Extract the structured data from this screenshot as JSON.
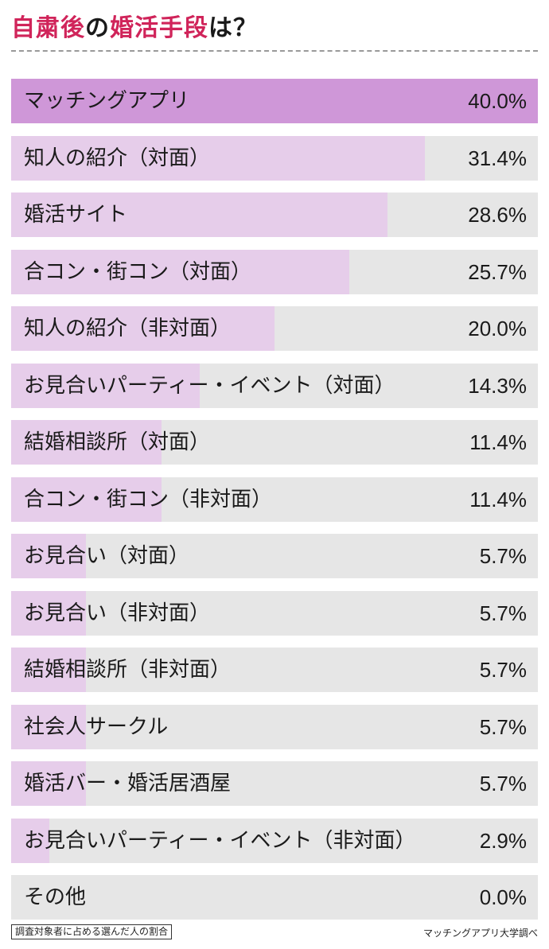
{
  "title": {
    "part1": "自粛後",
    "part2": "の",
    "part3": "婚活手段",
    "part4": "は？"
  },
  "colors": {
    "title_accent": "#d0245a",
    "bar_highlight": "#cf97d8",
    "bar_normal": "#e6cdea",
    "track": "#e6e6e6"
  },
  "chart_data": {
    "type": "bar",
    "orientation": "horizontal",
    "xlim": [
      0,
      40
    ],
    "unit": "%",
    "categories": [
      "マッチングアプリ",
      "知人の紹介（対面）",
      "婚活サイト",
      "合コン・街コン（対面）",
      "知人の紹介（非対面）",
      "お見合いパーティー・イベント（対面）",
      "結婚相談所（対面）",
      "合コン・街コン（非対面）",
      "お見合い（対面）",
      "お見合い（非対面）",
      "結婚相談所（非対面）",
      "社会人サークル",
      "婚活バー・婚活居酒屋",
      "お見合いパーティー・イベント（非対面）",
      "その他"
    ],
    "values": [
      40.0,
      31.4,
      28.6,
      25.7,
      20.0,
      14.3,
      11.4,
      11.4,
      5.7,
      5.7,
      5.7,
      5.7,
      5.7,
      2.9,
      0.0
    ],
    "value_labels": [
      "40.0%",
      "31.4%",
      "28.6%",
      "25.7%",
      "20.0%",
      "14.3%",
      "11.4%",
      "11.4%",
      "5.7%",
      "5.7%",
      "5.7%",
      "5.7%",
      "5.7%",
      "2.9%",
      "0.0%"
    ],
    "highlight_index": 0
  },
  "footnote": "調査対象者に占める選んだ人の割合",
  "source": "マッチングアプリ大学調べ"
}
